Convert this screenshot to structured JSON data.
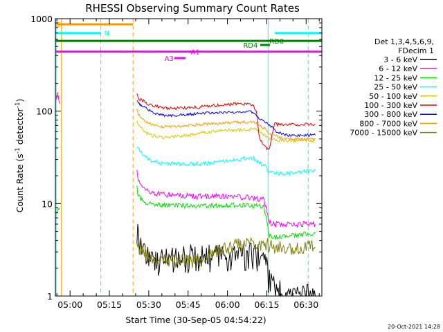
{
  "footer": {
    "timestamp": "20-Oct-2021 14:28"
  },
  "chart_data": {
    "type": "line",
    "title": "RHESSI Observing Summary Count Rates",
    "xlabel": "Start Time (30-Sep-05 04:54:22)",
    "ylabel_main": "Count Rate (s",
    "ylabel_sup1": "-1",
    "ylabel_mid": " detector",
    "ylabel_sup2": "-1",
    "ylabel_end": ")",
    "yscale": "log",
    "ylim": [
      1,
      1000
    ],
    "xlim": [
      -5.6,
      96.0
    ],
    "x_units": "minutes after 05:00",
    "x_ticks": [
      {
        "value": 0,
        "label": "05:00"
      },
      {
        "value": 15,
        "label": "05:15"
      },
      {
        "value": 30,
        "label": "05:30"
      },
      {
        "value": 45,
        "label": "05:45"
      },
      {
        "value": 60,
        "label": "06:00"
      },
      {
        "value": 75,
        "label": "06:15"
      },
      {
        "value": 90,
        "label": "06:30"
      }
    ],
    "y_ticks": [
      {
        "value": 1,
        "label": "1"
      },
      {
        "value": 10,
        "label": "10"
      },
      {
        "value": 100,
        "label": "100"
      },
      {
        "value": 1000,
        "label": "1000"
      }
    ],
    "legend": {
      "position": "right",
      "header1": "Det 1,3,4,5,6,9,",
      "header2": "FDecim 1",
      "entries": [
        {
          "label": "3 - 6 keV",
          "color": "#000000"
        },
        {
          "label": "6 - 12 keV",
          "color": "#ff00ff"
        },
        {
          "label": "12 - 25 keV",
          "color": "#00e000"
        },
        {
          "label": "25 - 50 keV",
          "color": "#00ffff"
        },
        {
          "label": "50 - 100 keV",
          "color": "#d8c800"
        },
        {
          "label": "100 - 300 keV",
          "color": "#e00000"
        },
        {
          "label": "300 - 800 keV",
          "color": "#0000ff"
        },
        {
          "label": "800 - 7000 keV",
          "color": "#ff9900"
        },
        {
          "label": "7000 - 15000 keV",
          "color": "#808000"
        }
      ]
    },
    "flags": [
      {
        "name": "S",
        "color": "#ff9900",
        "start": -5.4,
        "end": 24.0,
        "y": 870,
        "label": "S",
        "label_at": -5.4
      },
      {
        "name": "N",
        "color": "#00ffff",
        "start": -5.4,
        "end": 11.7,
        "y": 700,
        "label": "N",
        "label_at": 13.0
      },
      {
        "name": "N2",
        "color": "#00ffff",
        "start": 78.0,
        "end": 96.0,
        "y": 700,
        "label": "",
        "label_at": 0
      },
      {
        "name": "RD0",
        "color": "#008000",
        "start": -5.4,
        "end": 96.0,
        "y": 575,
        "label": "RD0",
        "label_at": 76.0
      },
      {
        "name": "RD4",
        "color": "#008000",
        "start": 72.5,
        "end": 76.2,
        "y": 520,
        "label": "RD4",
        "label_at": 66.0
      },
      {
        "name": "A1",
        "color": "#ff00ff",
        "start": -5.4,
        "end": 96.0,
        "y": 440,
        "label": "A1",
        "label_at": 46.0
      },
      {
        "name": "A3",
        "color": "#ff00ff",
        "start": 39.8,
        "end": 44.0,
        "y": 375,
        "label": "A3",
        "label_at": 36.0
      }
    ],
    "vlines": [
      {
        "x": -5.3,
        "color": "#00ffff",
        "style": "solid"
      },
      {
        "x": -3.3,
        "color": "#ff9900",
        "style": "solid"
      },
      {
        "x": 11.7,
        "color": "#00ffff",
        "style": "dashed"
      },
      {
        "x": 24.0,
        "color": "#ff9900",
        "style": "dashed"
      },
      {
        "x": 75.5,
        "color": "#00ffff",
        "style": "solid"
      },
      {
        "x": 90.8,
        "color": "#00ffff",
        "style": "dashed"
      }
    ],
    "series": [
      {
        "name": "3 - 6 keV",
        "color": "#000000",
        "x": [
          25.5,
          27,
          29,
          31,
          33,
          35,
          37,
          39,
          41,
          43,
          45,
          47,
          50,
          55,
          60,
          65,
          70,
          72,
          74,
          76,
          78,
          80,
          85,
          90,
          93.5
        ],
        "y": [
          5.2,
          3.8,
          3.0,
          2.5,
          2.4,
          2.4,
          2.5,
          2.5,
          2.6,
          2.6,
          2.7,
          2.7,
          2.7,
          2.7,
          2.7,
          2.8,
          2.8,
          2.8,
          2.7,
          1.5,
          1.2,
          1.1,
          1.0,
          1.0,
          1.0
        ]
      },
      {
        "name": "6 - 12 keV",
        "color": "#ff00ff",
        "x": [
          -5.2,
          -4.5,
          -4,
          25.5,
          26,
          28,
          30,
          32,
          35,
          38,
          41,
          44,
          47,
          50,
          55,
          60,
          65,
          70,
          72,
          74,
          76,
          78,
          80,
          85,
          90,
          93.5
        ],
        "y": [
          140,
          150,
          120,
          23,
          18,
          15,
          13.5,
          13,
          12.5,
          12.5,
          12.3,
          12.3,
          12,
          12,
          12,
          12,
          11.8,
          11.5,
          11.3,
          11,
          6.2,
          6,
          6,
          6,
          6,
          6
        ]
      },
      {
        "name": "12 - 25 keV",
        "color": "#00e000",
        "x": [
          -5.2,
          -4,
          25.5,
          26,
          28,
          30,
          32,
          35,
          38,
          41,
          44,
          47,
          50,
          55,
          60,
          65,
          70,
          72,
          74,
          76,
          78,
          80,
          85,
          90,
          93.5
        ],
        "y": [
          8,
          9,
          15,
          12,
          10.5,
          10,
          9.8,
          9.6,
          9.6,
          9.5,
          9.5,
          9.5,
          9.5,
          9.5,
          9.6,
          9.6,
          9.5,
          9.5,
          9.2,
          4.5,
          4.3,
          4.4,
          4.6,
          4.7,
          4.8
        ]
      },
      {
        "name": "25 - 50 keV",
        "color": "#00ffff",
        "x": [
          25.5,
          26,
          28,
          30,
          33,
          36,
          40,
          44,
          48,
          52,
          56,
          60,
          64,
          68,
          70,
          72,
          74,
          76,
          78,
          80,
          83,
          86,
          90,
          93.5
        ],
        "y": [
          42,
          40,
          33,
          30,
          28,
          27,
          27,
          27,
          27,
          27,
          28,
          29,
          30,
          31,
          30.5,
          28,
          26,
          22,
          21.5,
          21,
          21,
          22,
          22.5,
          22.5
        ]
      },
      {
        "name": "50 - 100 keV",
        "color": "#d8c800",
        "x": [
          25.5,
          26,
          28,
          30,
          32,
          35,
          40,
          45,
          50,
          55,
          60,
          65,
          70,
          72,
          74,
          76,
          78,
          80,
          85,
          90,
          93.5
        ],
        "y": [
          80,
          72,
          62,
          56,
          54,
          52,
          53,
          55,
          58,
          60,
          62,
          63,
          64,
          62,
          55,
          50,
          49,
          48,
          48,
          48,
          48
        ]
      },
      {
        "name": "100 - 300 keV",
        "color": "#e00000",
        "x": [
          -5.2,
          -4.5,
          25.5,
          26,
          28,
          30,
          33,
          36,
          40,
          44,
          48,
          52,
          56,
          60,
          64,
          68,
          70,
          71,
          72,
          73,
          74,
          75,
          76,
          77,
          78,
          79,
          80,
          82,
          85,
          90,
          93.5
        ],
        "y": [
          140,
          160,
          150,
          138,
          128,
          118,
          112,
          108,
          107,
          108,
          110,
          113,
          116,
          118,
          120,
          118,
          115,
          100,
          55,
          47,
          42,
          40,
          40,
          55,
          75,
          72,
          72,
          72,
          72,
          72,
          72
        ]
      },
      {
        "name": "300 - 800 keV",
        "color": "#0000ff",
        "x": [
          25.5,
          26,
          28,
          30,
          33,
          36,
          40,
          44,
          48,
          52,
          56,
          60,
          64,
          68,
          70,
          72,
          74,
          76,
          78,
          80,
          82,
          85,
          90,
          93.5
        ],
        "y": [
          130,
          122,
          112,
          102,
          94,
          90,
          90,
          92,
          94,
          96,
          96,
          97,
          98,
          100,
          97,
          85,
          78,
          72,
          62,
          58,
          55,
          55,
          55,
          55
        ]
      },
      {
        "name": "800 - 7000 keV",
        "color": "#ff9900",
        "x": [
          25.5,
          26,
          28,
          30,
          32,
          35,
          40,
          45,
          50,
          55,
          60,
          65,
          70,
          72,
          74,
          76,
          78,
          80,
          82,
          85,
          90,
          93.5
        ],
        "y": [
          105,
          92,
          80,
          74,
          70,
          68,
          68,
          70,
          72,
          73,
          75,
          76,
          76,
          72,
          65,
          58,
          55,
          52,
          50,
          50,
          50,
          50
        ]
      },
      {
        "name": "7000 - 15000 keV",
        "color": "#808000",
        "x": [
          25.5,
          27,
          29,
          31,
          34,
          37,
          40,
          43,
          46,
          50,
          54,
          56,
          60,
          64,
          68,
          72,
          75,
          78,
          82,
          86,
          90,
          93.5
        ],
        "y": [
          3.5,
          3.2,
          2.8,
          2.5,
          2.4,
          2.4,
          2.4,
          2.4,
          2.4,
          2.5,
          2.8,
          3.1,
          3.4,
          3.6,
          3.8,
          3.8,
          3.6,
          3.5,
          3.4,
          3.4,
          3.4,
          3.4
        ]
      }
    ]
  }
}
